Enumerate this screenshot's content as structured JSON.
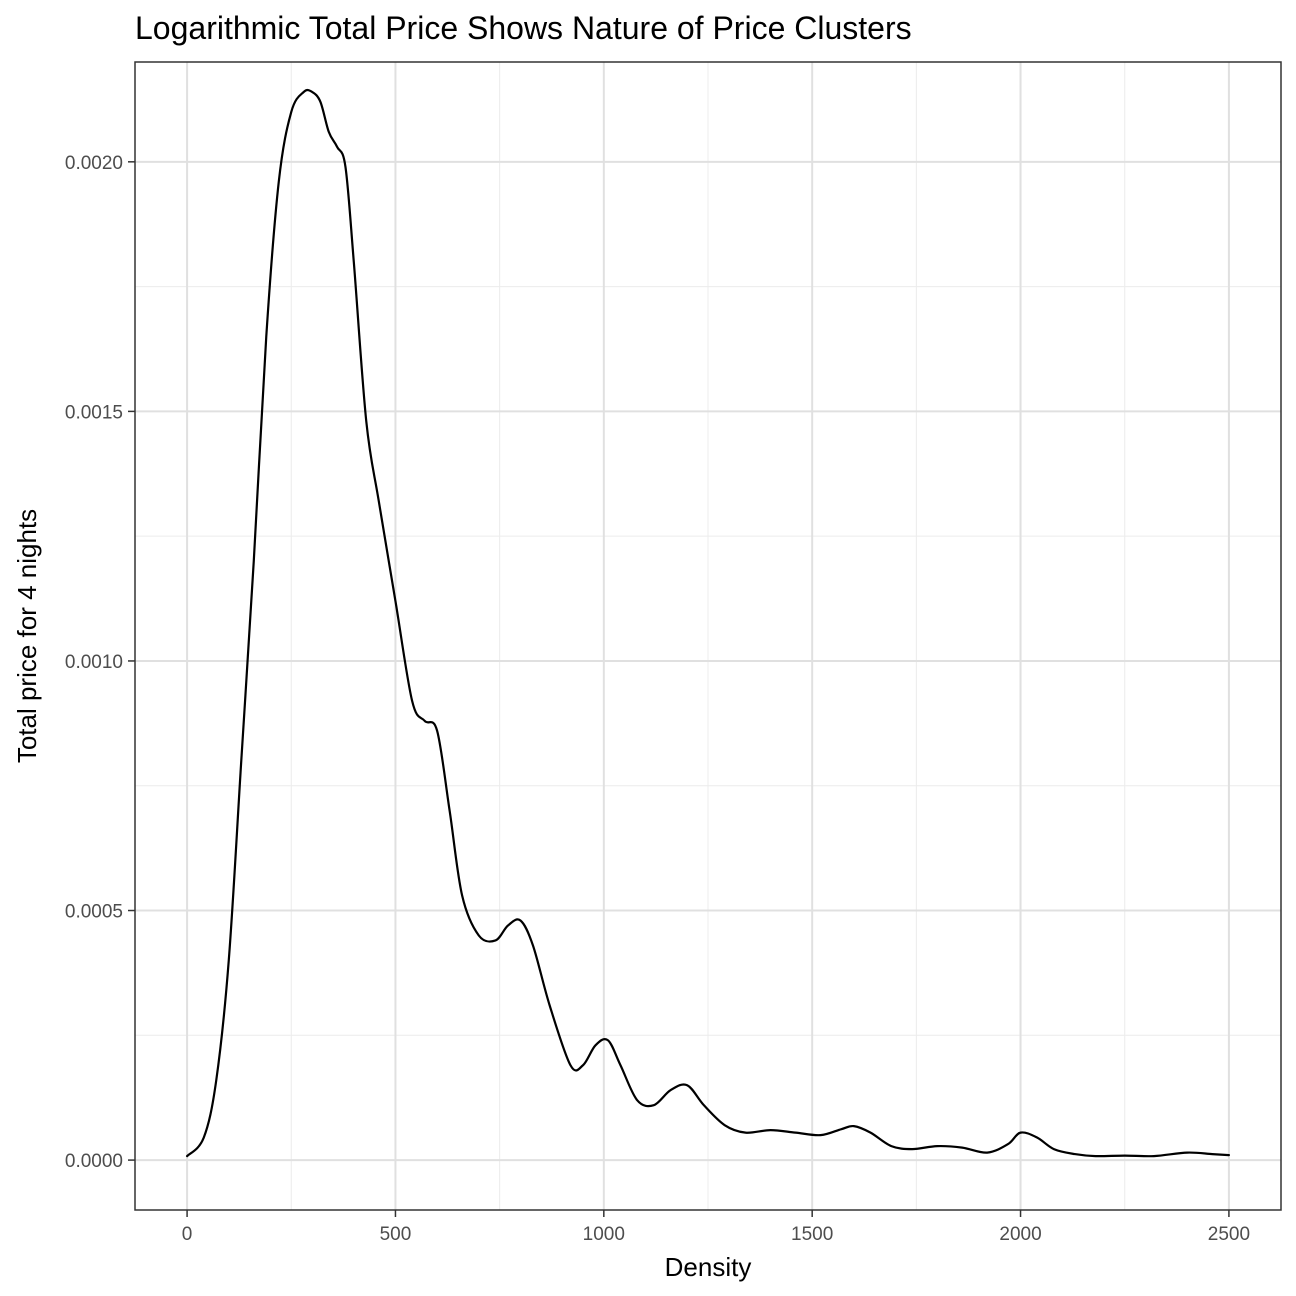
{
  "chart_data": {
    "type": "line",
    "title": "Logarithmic Total Price Shows Nature of Price Clusters",
    "xlabel": "Density",
    "ylabel": "Total price for 4 nights",
    "xlim": [
      -125,
      2625
    ],
    "ylim": [
      -0.0001,
      0.0022
    ],
    "x_ticks": [
      0,
      500,
      1000,
      1500,
      2000,
      2500
    ],
    "x_tick_labels": [
      "0",
      "500",
      "1000",
      "1500",
      "2000",
      "2500"
    ],
    "x_minor_ticks": [
      250,
      750,
      1250,
      1750,
      2250
    ],
    "y_ticks": [
      0,
      0.0005,
      0.001,
      0.0015,
      0.002
    ],
    "y_tick_labels": [
      "0.0000",
      "0.0005",
      "0.0010",
      "0.0015",
      "0.0020"
    ],
    "y_minor_ticks": [
      0.00025,
      0.00075,
      0.00125,
      0.00175
    ],
    "grid": true,
    "series": [
      {
        "name": "density",
        "color": "#000000",
        "x": [
          0,
          40,
          70,
          100,
          130,
          160,
          190,
          220,
          250,
          280,
          300,
          320,
          340,
          360,
          380,
          400,
          430,
          460,
          500,
          540,
          570,
          600,
          630,
          660,
          700,
          740,
          770,
          800,
          830,
          870,
          920,
          950,
          980,
          1010,
          1040,
          1080,
          1120,
          1160,
          1200,
          1240,
          1290,
          1340,
          1400,
          1460,
          1520,
          1570,
          1600,
          1640,
          1690,
          1740,
          1800,
          1860,
          1920,
          1970,
          2000,
          2040,
          2080,
          2130,
          2180,
          2250,
          2320,
          2400,
          2460,
          2500
        ],
        "y": [
          8e-06,
          4.5e-05,
          0.00016,
          0.0004,
          0.0008,
          0.0012,
          0.00165,
          0.00196,
          0.0021,
          0.00214,
          0.00214,
          0.00212,
          0.00206,
          0.00203,
          0.00199,
          0.0018,
          0.00148,
          0.00132,
          0.00112,
          0.00092,
          0.00088,
          0.00086,
          0.0007,
          0.00053,
          0.00045,
          0.00044,
          0.00047,
          0.00048,
          0.00043,
          0.00031,
          0.00019,
          0.00019,
          0.00023,
          0.00024,
          0.00019,
          0.00012,
          0.00011,
          0.00014,
          0.00015,
          0.00011,
          7e-05,
          5.5e-05,
          6e-05,
          5.5e-05,
          5e-05,
          6.2e-05,
          6.8e-05,
          5.5e-05,
          2.8e-05,
          2.2e-05,
          2.8e-05,
          2.5e-05,
          1.5e-05,
          3.2e-05,
          5.5e-05,
          4.5e-05,
          2.2e-05,
          1.2e-05,
          8e-06,
          9e-06,
          8e-06,
          1.5e-05,
          1.2e-05,
          1e-05
        ]
      }
    ]
  }
}
